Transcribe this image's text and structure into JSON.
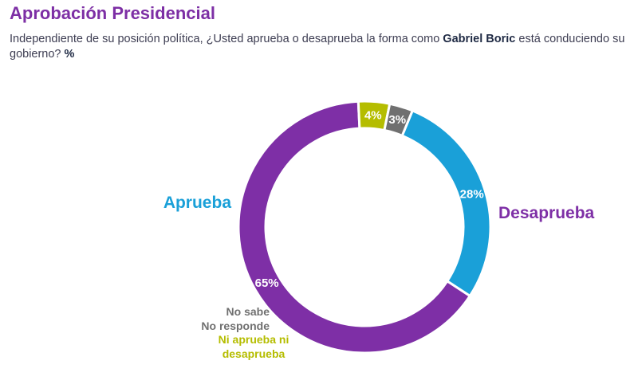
{
  "header": {
    "title": "Aprobación Presidencial",
    "subtitle_pre": "Independiente de su posición política, ¿Usted aprueba o desaprueba la forma como ",
    "subtitle_bold": "Gabriel Boric",
    "subtitle_post": " está conduciendo su gobierno? ",
    "subtitle_unit": "%"
  },
  "chart_data": {
    "type": "pie",
    "variant": "donut",
    "slices": [
      {
        "label": "Aprueba",
        "value": 28,
        "display": "28%",
        "color": "#1aa0d8"
      },
      {
        "label": "Desaprueba",
        "value": 65,
        "display": "65%",
        "color": "#7e2fa6"
      },
      {
        "label": "Ni aprueba ni desaprueba",
        "label_lines": [
          "Ni aprueba ni",
          "desaprueba"
        ],
        "value": 4,
        "display": "4%",
        "color": "#b5bd00"
      },
      {
        "label": "No sabe No responde",
        "label_lines": [
          "No sabe",
          "No responde"
        ],
        "value": 3,
        "display": "3%",
        "color": "#707070"
      }
    ]
  }
}
